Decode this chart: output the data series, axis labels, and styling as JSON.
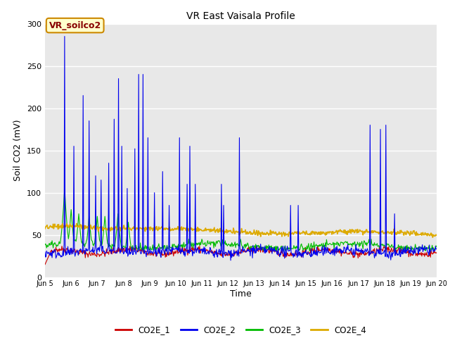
{
  "title": "VR East Vaisala Profile",
  "ylabel": "Soil CO2 (mV)",
  "xlabel": "Time",
  "annotation": "VR_soilco2",
  "xlim_days": [
    5,
    20
  ],
  "ylim": [
    0,
    300
  ],
  "yticks": [
    0,
    50,
    100,
    150,
    200,
    250,
    300
  ],
  "colors": {
    "CO2E_1": "#cc0000",
    "CO2E_2": "#0000ee",
    "CO2E_3": "#00bb00",
    "CO2E_4": "#ddaa00"
  },
  "fig_bg": "#ffffff",
  "plot_bg": "#e8e8e8",
  "xtick_labels": [
    "Jun 5",
    "Jun 6",
    "Jun 7",
    "Jun 8",
    "Jun 9",
    "Jun 10",
    "Jun 11",
    "Jun 12",
    "Jun 13",
    "Jun 14",
    "Jun 15",
    "Jun 16",
    "Jun 17",
    "Jun 18",
    "Jun 19",
    "Jun 20"
  ],
  "legend_labels": [
    "CO2E_1",
    "CO2E_2",
    "CO2E_3",
    "CO2E_4"
  ]
}
